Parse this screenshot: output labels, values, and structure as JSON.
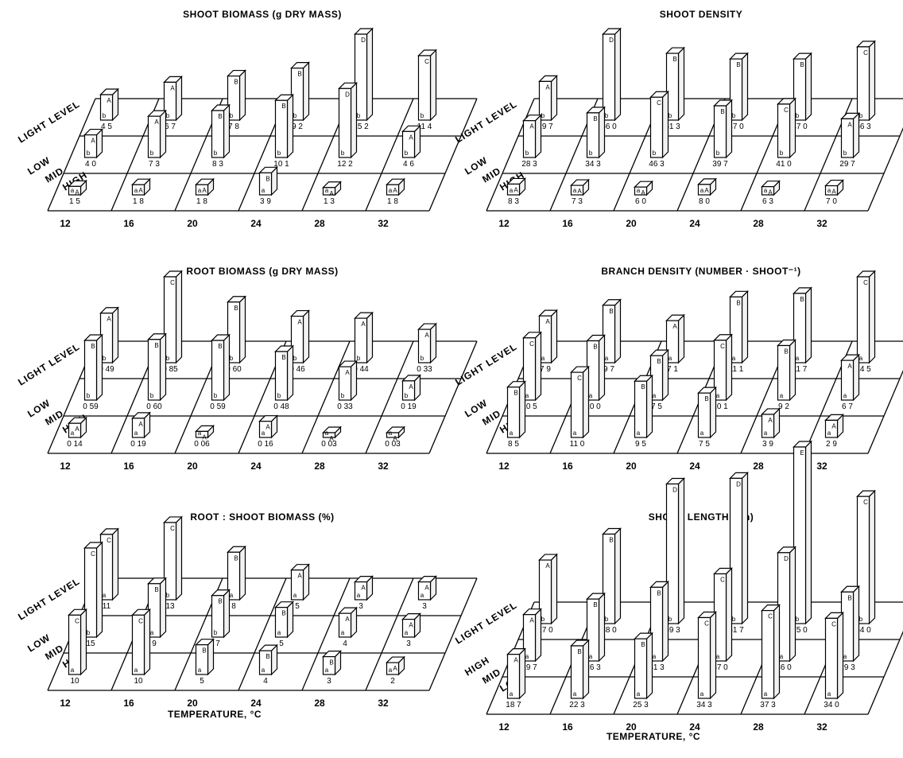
{
  "chart_data": [
    {
      "type": "bar",
      "title": "SHOOT BIOMASS (g DRY MASS)",
      "xlabel": "",
      "ylabel_words": [
        "LIGHT LEVEL",
        "LOW",
        "MID",
        "HIGH"
      ],
      "categories": [
        "12",
        "16",
        "20",
        "24",
        "28",
        "32"
      ],
      "series": [
        {
          "name": "LOW",
          "values": [
            1.5,
            1.8,
            1.8,
            3.9,
            1.3,
            1.8
          ],
          "labels": [
            "1 5",
            "1 8",
            "1 8",
            "3 9",
            "1 3",
            "1 8"
          ],
          "letters": [
            "aA",
            "aA",
            "aA",
            "aB",
            "aA",
            "aA"
          ]
        },
        {
          "name": "MID",
          "values": [
            4.0,
            7.3,
            8.3,
            10.1,
            12.2,
            4.6
          ],
          "labels": [
            "4 0",
            "7 3",
            "8 3",
            "10 1",
            "12 2",
            "4 6"
          ],
          "letters": [
            "bA",
            "bA",
            "bB",
            "bB",
            "bD",
            "bA"
          ]
        },
        {
          "name": "HIGH",
          "values": [
            4.5,
            6.7,
            7.8,
            9.2,
            15.2,
            11.4
          ],
          "labels": [
            "4 5",
            "6 7",
            "7 8",
            "9 2",
            "15 2",
            "11 4"
          ],
          "letters": [
            "bA",
            "bA",
            "bB",
            "bB",
            "bD",
            "bC"
          ]
        }
      ]
    },
    {
      "type": "bar",
      "title": "SHOOT DENSITY",
      "xlabel": "",
      "ylabel_words": [
        "LIGHT LEVEL",
        "LOW",
        "MID",
        "HIGH"
      ],
      "categories": [
        "12",
        "16",
        "20",
        "24",
        "28",
        "32"
      ],
      "series": [
        {
          "name": "LOW",
          "values": [
            8.3,
            7.3,
            6.0,
            8.0,
            6.3,
            7.0
          ],
          "labels": [
            "8 3",
            "7 3",
            "6 0",
            "8 0",
            "6 3",
            "7 0"
          ],
          "letters": [
            "aA",
            "aA",
            "aA",
            "aA",
            "aA",
            "aA"
          ]
        },
        {
          "name": "MID",
          "values": [
            28.3,
            34.3,
            46.3,
            39.7,
            41.0,
            29.7
          ],
          "labels": [
            "28 3",
            "34 3",
            "46 3",
            "39 7",
            "41 0",
            "29 7"
          ],
          "letters": [
            "bA",
            "bB",
            "bC",
            "bB",
            "bC",
            "bA"
          ]
        },
        {
          "name": "HIGH",
          "values": [
            29.7,
            66.0,
            51.3,
            47.0,
            47.0,
            56.3
          ],
          "labels": [
            "29 7",
            "66 0",
            "51 3",
            "47 0",
            "47 0",
            "56 3"
          ],
          "letters": [
            "bA",
            "bD",
            "bB",
            "bB",
            "bB",
            "bC"
          ]
        }
      ]
    },
    {
      "type": "bar",
      "title": "ROOT BIOMASS (g DRY MASS)",
      "xlabel": "",
      "ylabel_words": [
        "LIGHT LEVEL",
        "LOW",
        "MID",
        "HIGH"
      ],
      "categories": [
        "12",
        "16",
        "20",
        "24",
        "28",
        "32"
      ],
      "series": [
        {
          "name": "LOW",
          "values": [
            0.14,
            0.19,
            0.06,
            0.16,
            0.03,
            0.03
          ],
          "labels": [
            "0 14",
            "0 19",
            "0 06",
            "0 16",
            "0 03",
            "0 03"
          ],
          "letters": [
            "aA",
            "aA",
            "aA",
            "aA",
            "aA",
            "aA"
          ]
        },
        {
          "name": "MID",
          "values": [
            0.59,
            0.6,
            0.59,
            0.48,
            0.33,
            0.19
          ],
          "labels": [
            "0 59",
            "0 60",
            "0 59",
            "0 48",
            "0 33",
            "0 19"
          ],
          "letters": [
            "bB",
            "bB",
            "bB",
            "bB",
            "bA",
            "bA"
          ]
        },
        {
          "name": "HIGH",
          "values": [
            0.49,
            0.85,
            0.6,
            0.46,
            0.44,
            0.33
          ],
          "labels": [
            "0 49",
            "0 85",
            "0 60",
            "0 46",
            "0 44",
            "0 33"
          ],
          "letters": [
            "bA",
            "bC",
            "bB",
            "bA",
            "bA",
            "bA"
          ]
        }
      ]
    },
    {
      "type": "bar",
      "title": "BRANCH DENSITY  (NUMBER · SHOOT⁻¹)",
      "xlabel": "",
      "ylabel_words": [
        "LIGHT LEVEL",
        "LOW",
        "MID",
        "HIGH"
      ],
      "categories": [
        "12",
        "16",
        "20",
        "24",
        "28",
        "32"
      ],
      "series": [
        {
          "name": "LOW",
          "values": [
            8.5,
            11.0,
            9.5,
            7.5,
            3.9,
            2.9
          ],
          "labels": [
            "8 5",
            "11 0",
            "9 5",
            "7 5",
            "3 9",
            "2 9"
          ],
          "letters": [
            "aB",
            "aC",
            "aB",
            "aB",
            "aA",
            "aA"
          ]
        },
        {
          "name": "MID",
          "values": [
            10.5,
            10.0,
            7.5,
            10.1,
            9.2,
            6.7
          ],
          "labels": [
            "10 5",
            "10 0",
            "7 5",
            "10 1",
            "9 2",
            "6 7"
          ],
          "letters": [
            "aC",
            "aB",
            "aB",
            "aC",
            "aB",
            "aA"
          ]
        },
        {
          "name": "HIGH",
          "values": [
            7.9,
            9.7,
            7.1,
            11.1,
            11.7,
            14.5
          ],
          "labels": [
            "7 9",
            "9 7",
            "7 1",
            "11 1",
            "11 7",
            "14 5"
          ],
          "letters": [
            "aA",
            "aB",
            "aA",
            "aB",
            "aB",
            "aC"
          ]
        }
      ]
    },
    {
      "type": "bar",
      "title": "ROOT : SHOOT BIOMASS (%)",
      "xlabel": "TEMPERATURE, °C",
      "ylabel_words": [
        "LIGHT LEVEL",
        "LOW",
        "MID",
        "HIGH"
      ],
      "categories": [
        "12",
        "16",
        "20",
        "24",
        "28",
        "32"
      ],
      "series": [
        {
          "name": "LOW",
          "values": [
            10,
            10,
            5,
            4,
            3,
            2
          ],
          "labels": [
            "10",
            "10",
            "5",
            "4",
            "3",
            "2"
          ],
          "letters": [
            "aC",
            "aC",
            "aB",
            "aB",
            "aB",
            "aA"
          ]
        },
        {
          "name": "MID",
          "values": [
            15,
            9,
            7,
            5,
            4,
            3
          ],
          "labels": [
            "15",
            "9",
            "7",
            "5",
            "4",
            "3"
          ],
          "letters": [
            "bC",
            "aB",
            "bB",
            "aB",
            "aA",
            "aA"
          ]
        },
        {
          "name": "HIGH",
          "values": [
            11,
            13,
            8,
            5,
            3,
            3
          ],
          "labels": [
            "11",
            "13",
            "8",
            "5",
            "3",
            "3"
          ],
          "letters": [
            "aC",
            "bC",
            "aB",
            "aA",
            "aA",
            "aA"
          ]
        }
      ]
    },
    {
      "type": "bar",
      "title": "SHOOT LENGTH (cm)",
      "xlabel": "TEMPERATURE, °C",
      "ylabel_words": [
        "LIGHT LEVEL",
        "HIGH",
        "MID",
        "LOW"
      ],
      "categories": [
        "12",
        "16",
        "20",
        "24",
        "28",
        "32"
      ],
      "series": [
        {
          "name": "HIGH",
          "values": [
            18.7,
            22.3,
            25.3,
            34.3,
            37.3,
            34.0
          ],
          "labels": [
            "18 7",
            "22 3",
            "25 3",
            "34 3",
            "37 3",
            "34 0"
          ],
          "letters": [
            "aA",
            "aB",
            "aB",
            "aC",
            "aC",
            "aC"
          ]
        },
        {
          "name": "MID",
          "values": [
            19.7,
            26.3,
            31.3,
            37.0,
            46.0,
            29.3
          ],
          "labels": [
            "19 7",
            "26 3",
            "31 3",
            "37 0",
            "46 0",
            "29 3"
          ],
          "letters": [
            "aA",
            "aB",
            "aB",
            "aC",
            "aD",
            "aB"
          ]
        },
        {
          "name": "LOW",
          "values": [
            27.0,
            38.0,
            59.3,
            61.7,
            75.0,
            54.0
          ],
          "labels": [
            "27 0",
            "38 0",
            "59 3",
            "61 7",
            "75 0",
            "54 0"
          ],
          "letters": [
            "bA",
            "bB",
            "bD",
            "bD",
            "bE",
            "bC"
          ]
        }
      ]
    }
  ]
}
